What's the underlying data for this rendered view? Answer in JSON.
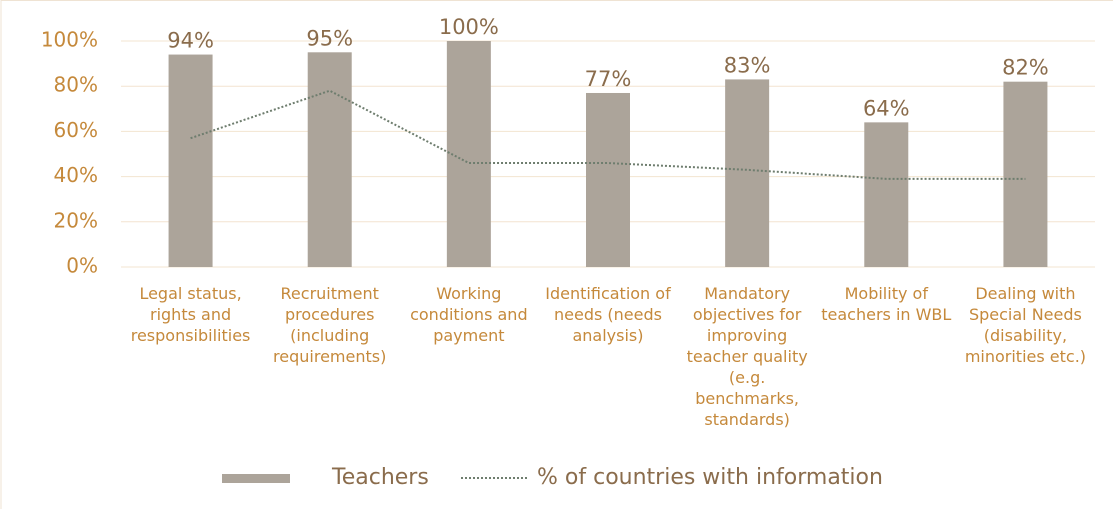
{
  "chart_data": {
    "type": "bar_line",
    "categories": [
      "Legal status, rights and responsibilities",
      "Recruitment procedures (including requirements)",
      "Working conditions and payment",
      "Identification of needs (needs analysis)",
      "Mandatory objectives for improving teacher quality (e.g. benchmarks, standards)",
      "Mobility of teachers in WBL",
      "Dealing with Special Needs (disability, minorities etc.)"
    ],
    "series": [
      {
        "name": "Teachers",
        "type": "bar",
        "color": "#aca49a",
        "values": [
          94,
          95,
          100,
          77,
          83,
          64,
          82
        ],
        "value_labels": [
          "94%",
          "95%",
          "100%",
          "77%",
          "83%",
          "64%",
          "82%"
        ]
      },
      {
        "name": "% of countries with information",
        "type": "line",
        "color": "#6e7d6e",
        "values": [
          57,
          78,
          46,
          46,
          43,
          39,
          39
        ]
      }
    ],
    "ylim": [
      0,
      100
    ],
    "yticks": [
      {
        "value": 0,
        "label": "0%"
      },
      {
        "value": 20,
        "label": "20%"
      },
      {
        "value": 40,
        "label": "40%"
      },
      {
        "value": 60,
        "label": "60%"
      },
      {
        "value": 80,
        "label": "80%"
      },
      {
        "value": 100,
        "label": "100%"
      }
    ],
    "grid": true,
    "legend": "bottom"
  }
}
